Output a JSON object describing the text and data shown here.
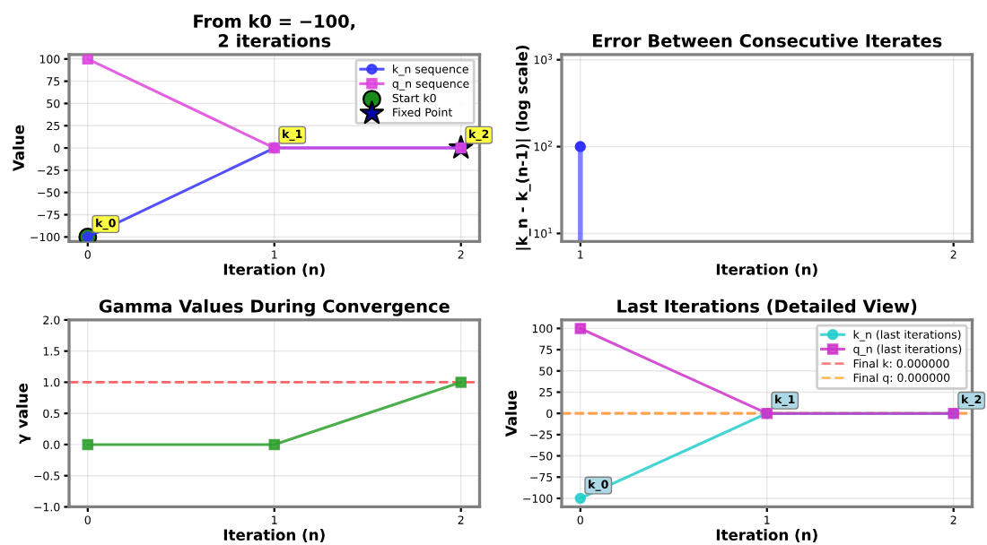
{
  "chart_data": [
    {
      "type": "line",
      "title": "From k0 = −100,\n2 iterations",
      "xlabel": "Iteration (n)",
      "ylabel": "Value",
      "x": [
        0,
        1,
        2
      ],
      "series": [
        {
          "name": "k_n sequence",
          "color": "#3333ff",
          "values": [
            -100,
            0,
            0
          ],
          "marker": "circle"
        },
        {
          "name": "q_n sequence",
          "color": "#dd44dd",
          "values": [
            100,
            0,
            0
          ],
          "marker": "square"
        },
        {
          "name": "Start k0",
          "type": "scatter",
          "color": "#1a8c1a",
          "x": [
            0
          ],
          "values": [
            -100
          ],
          "marker": "circle"
        },
        {
          "name": "Fixed Point",
          "type": "scatter",
          "color": "#0000aa",
          "x": [
            2
          ],
          "values": [
            0
          ],
          "marker": "star"
        }
      ],
      "annotations": [
        {
          "text": "k_0",
          "x": 0,
          "y": -100
        },
        {
          "text": "k_1",
          "x": 1,
          "y": 0
        },
        {
          "text": "k_2",
          "x": 2,
          "y": 0
        }
      ],
      "xlim": [
        -0.1,
        2.1
      ],
      "xticks": [
        0,
        1,
        2
      ],
      "ylim": [
        -105,
        105
      ],
      "yticks": [
        {
          "value": -100,
          "label": "−100"
        },
        {
          "value": -75,
          "label": "−75"
        },
        {
          "value": -50,
          "label": "−50"
        },
        {
          "value": -25,
          "label": "−25"
        },
        0,
        25,
        50,
        75,
        100
      ],
      "grid": true,
      "legend": "top right"
    },
    {
      "type": "lollipop",
      "title": "Error Between Consecutive Iterates",
      "xlabel": "Iteration (n)",
      "ylabel": "|k_n - k_(n-1)| (log scale)",
      "x": [
        1
      ],
      "log": "y",
      "series": [
        {
          "color": "#3333ff",
          "values": [
            100
          ],
          "marker": "circle"
        }
      ],
      "xlim": [
        0.95,
        2.05
      ],
      "xticks": [
        1,
        2
      ],
      "ylim": [
        8.1,
        1150
      ],
      "yticks": [
        {
          "value": 10,
          "label": "10$^{1}$"
        },
        {
          "value": 100,
          "label": "10$^{2}$"
        },
        {
          "value": 1000,
          "label": "10$^{3}$"
        }
      ],
      "grid": true
    },
    {
      "type": "line",
      "title": "Gamma Values During Convergence",
      "xlabel": "Iteration (n)",
      "ylabel": "γ value",
      "x": [
        0,
        1,
        2
      ],
      "series": [
        {
          "color": "#2ca02c",
          "values": [
            0,
            0,
            1
          ],
          "marker": "square"
        }
      ],
      "ref_lines": [
        {
          "axis": "y",
          "value": 1,
          "color": "#ff4444",
          "line_style": "dashed"
        }
      ],
      "xlim": [
        -0.1,
        2.1
      ],
      "xticks": [
        0,
        1,
        2
      ],
      "ylim": [
        -1,
        2
      ],
      "yticks": [
        {
          "value": -1,
          "label": "−1.0"
        },
        {
          "value": -0.5,
          "label": "−0.5"
        },
        {
          "value": 0,
          "label": "0.0"
        },
        {
          "value": 0.5,
          "label": "0.5"
        },
        {
          "value": 1,
          "label": "1.0"
        },
        {
          "value": 1.5,
          "label": "1.5"
        },
        {
          "value": 2,
          "label": "2.0"
        }
      ],
      "grid": true
    },
    {
      "type": "line",
      "title": "Last Iterations (Detailed View)",
      "xlabel": "Iteration (n)",
      "ylabel": "Value",
      "x": [
        0,
        1,
        2
      ],
      "series": [
        {
          "name": "k_n (last iterations)",
          "color": "#22cccc",
          "values": [
            -100,
            0,
            0
          ],
          "marker": "circle"
        },
        {
          "name": "q_n (last iterations)",
          "color": "#cc33cc",
          "values": [
            100,
            0,
            0
          ],
          "marker": "square"
        }
      ],
      "ref_lines": [
        {
          "axis": "y",
          "value": 0,
          "label": "Final k: 0.000000",
          "color": "#ff6666",
          "line_style": "dashed"
        },
        {
          "axis": "y",
          "value": 0,
          "label": "Final q: 0.000000",
          "color": "#ffaa33",
          "line_style": "dashed"
        }
      ],
      "annotations": [
        {
          "text": "k_0",
          "x": 0,
          "y": -100
        },
        {
          "text": "k_1",
          "x": 1,
          "y": 0
        },
        {
          "text": "k_2",
          "x": 2,
          "y": 0
        }
      ],
      "xlim": [
        -0.1,
        2.1
      ],
      "xticks": [
        0,
        1,
        2
      ],
      "ylim": [
        -110,
        110
      ],
      "yticks": [
        {
          "value": -100,
          "label": "−100"
        },
        {
          "value": -75,
          "label": "−75"
        },
        {
          "value": -50,
          "label": "−50"
        },
        {
          "value": -25,
          "label": "−25"
        },
        0,
        25,
        50,
        75,
        100
      ],
      "grid": true,
      "legend": "top right"
    }
  ]
}
